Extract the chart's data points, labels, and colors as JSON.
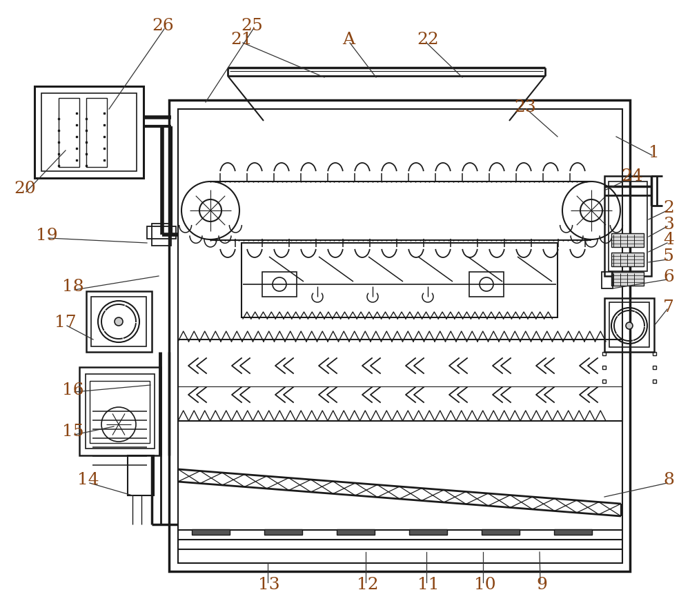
{
  "bg_color": "#ffffff",
  "line_color": "#1a1a1a",
  "label_color": "#8B4513",
  "fig_width": 10.0,
  "fig_height": 8.84,
  "dpi": 100
}
